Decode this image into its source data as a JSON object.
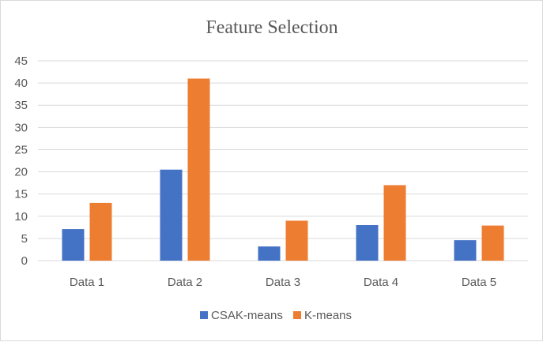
{
  "chart_data": {
    "type": "bar",
    "title": "Feature Selection",
    "categories": [
      "Data 1",
      "Data 2",
      "Data 3",
      "Data 4",
      "Data 5"
    ],
    "series": [
      {
        "name": "CSAK-means",
        "color": "#4472c4",
        "values": [
          7.1,
          20.5,
          3.2,
          8.0,
          4.6
        ]
      },
      {
        "name": "K-means",
        "color": "#ed7d31",
        "values": [
          13.0,
          41.0,
          9.0,
          17.0,
          7.9
        ]
      }
    ],
    "ylim": [
      0,
      45
    ],
    "yticks": [
      "0",
      "5",
      "10",
      "15",
      "20",
      "25",
      "30",
      "35",
      "40",
      "45"
    ],
    "grid": true,
    "legend_position": "bottom"
  }
}
